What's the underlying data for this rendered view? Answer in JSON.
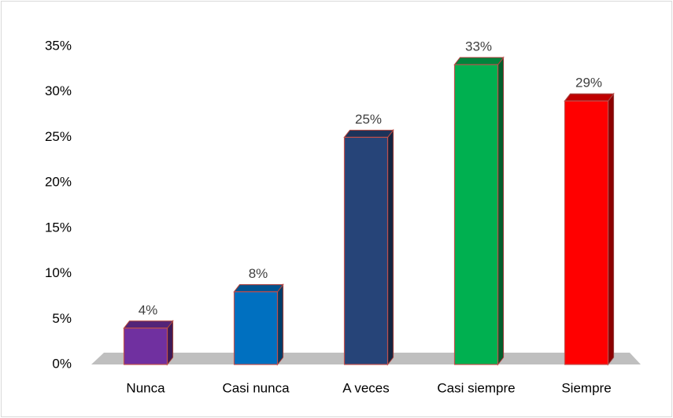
{
  "chart_data": {
    "type": "bar",
    "categories": [
      "Nunca",
      "Casi nunca",
      "A veces",
      "Casi siempre",
      "Siempre"
    ],
    "values": [
      4,
      8,
      25,
      33,
      29
    ],
    "value_labels": [
      "4%",
      "8%",
      "25%",
      "33%",
      "29%"
    ],
    "colors": [
      "#7030a0",
      "#0070c0",
      "#264478",
      "#00b050",
      "#ff0000"
    ],
    "ylim": [
      0,
      35
    ],
    "yticks": [
      {
        "value": 0,
        "label": "0%"
      },
      {
        "value": 5,
        "label": "5%"
      },
      {
        "value": 10,
        "label": "10%"
      },
      {
        "value": 15,
        "label": "15%"
      },
      {
        "value": 20,
        "label": "20%"
      },
      {
        "value": 25,
        "label": "25%"
      },
      {
        "value": 30,
        "label": "30%"
      },
      {
        "value": 35,
        "label": "35%"
      }
    ],
    "grid": false
  }
}
